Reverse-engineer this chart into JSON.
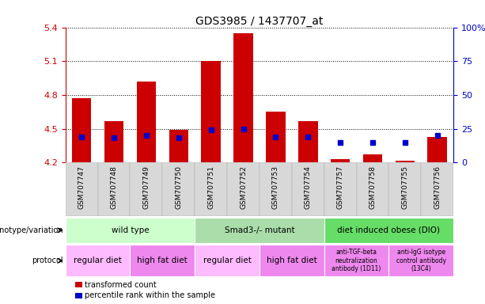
{
  "title": "GDS3985 / 1437707_at",
  "samples": [
    "GSM707747",
    "GSM707748",
    "GSM707749",
    "GSM707750",
    "GSM707751",
    "GSM707752",
    "GSM707753",
    "GSM707754",
    "GSM707757",
    "GSM707758",
    "GSM707755",
    "GSM707756"
  ],
  "bar_low": [
    4.2,
    4.2,
    4.2,
    4.2,
    4.2,
    4.2,
    4.2,
    4.2,
    4.2,
    4.2,
    4.2,
    4.2
  ],
  "bar_high": [
    4.77,
    4.57,
    4.92,
    4.49,
    5.1,
    5.35,
    4.65,
    4.57,
    4.23,
    4.27,
    4.22,
    4.43
  ],
  "dot_y": [
    4.43,
    4.42,
    4.44,
    4.42,
    4.49,
    4.5,
    4.43,
    4.43,
    4.38,
    4.38,
    4.38,
    4.44
  ],
  "ylim": [
    4.2,
    5.4
  ],
  "yticks_left": [
    4.2,
    4.5,
    4.8,
    5.1,
    5.4
  ],
  "yticks_right": [
    0,
    25,
    50,
    75,
    100
  ],
  "bar_color": "#cc0000",
  "dot_color": "#0000cc",
  "grid_color": "#000000",
  "title_fontsize": 10,
  "genotype_groups": [
    {
      "label": "wild type",
      "start": 0,
      "end": 4,
      "color": "#ccffcc"
    },
    {
      "label": "Smad3-/- mutant",
      "start": 4,
      "end": 8,
      "color": "#aaddaa"
    },
    {
      "label": "diet induced obese (DIO)",
      "start": 8,
      "end": 12,
      "color": "#66dd66"
    }
  ],
  "protocol_groups": [
    {
      "label": "regular diet",
      "start": 0,
      "end": 2,
      "color": "#ffbbff"
    },
    {
      "label": "high fat diet",
      "start": 2,
      "end": 4,
      "color": "#ee88ee"
    },
    {
      "label": "regular diet",
      "start": 4,
      "end": 6,
      "color": "#ffbbff"
    },
    {
      "label": "high fat diet",
      "start": 6,
      "end": 8,
      "color": "#ee88ee"
    },
    {
      "label": "anti-TGF-beta\nneutralization\nantibody (1D11)",
      "start": 8,
      "end": 10,
      "color": "#ee88ee"
    },
    {
      "label": "anti-IgG isotype\ncontrol antibody\n(13C4)",
      "start": 10,
      "end": 12,
      "color": "#ee88ee"
    }
  ],
  "legend_items": [
    {
      "label": "transformed count",
      "color": "#cc0000"
    },
    {
      "label": "percentile rank within the sample",
      "color": "#0000cc"
    }
  ]
}
